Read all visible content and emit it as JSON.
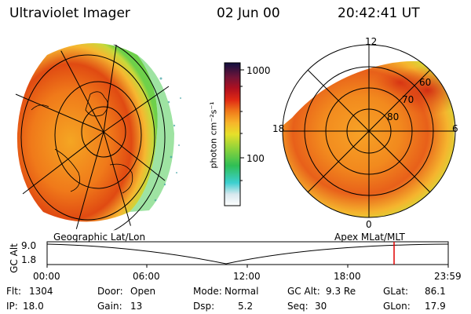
{
  "header": {
    "title": "Ultraviolet Imager",
    "date": "02 Jun 00",
    "time": "20:42:41 UT"
  },
  "colorbar": {
    "unit_label": "photon cm⁻²s⁻¹",
    "tick_1000": "1000",
    "tick_100": "100"
  },
  "left_panel": {
    "caption": "Geographic Lat/Lon"
  },
  "right_panel": {
    "caption": "Apex MLat/MLT",
    "mlt_12": "12",
    "mlt_18": "18",
    "mlt_6": "6",
    "mlt_0": "0",
    "mlat_60": "60",
    "mlat_70": "70",
    "mlat_80": "80"
  },
  "altitude_plot": {
    "ylabel": "GC Alt",
    "y_top": "9.0",
    "y_bottom": "1.8",
    "x_ticks": [
      "00:00",
      "06:00",
      "12:00",
      "18:00",
      "23:59"
    ],
    "current_time_marker": "20:42",
    "marker_color": "#e00000"
  },
  "status": {
    "flt_label": "Flt:",
    "flt_value": "1304",
    "ip_label": "IP:",
    "ip_value": "18.0",
    "door_label": "Door:",
    "door_value": "Open",
    "gain_label": "Gain:",
    "gain_value": "13",
    "mode_label": "Mode:",
    "mode_value": "Normal",
    "dsp_label": "Dsp:",
    "dsp_value": "5.2",
    "gcalt_label": "GC Alt:",
    "gcalt_value": "9.3 Re",
    "seq_label": "Seq:",
    "seq_value": "30",
    "glat_label": "GLat:",
    "glat_value": "86.1",
    "glon_label": "GLon:",
    "glon_value": "17.9"
  }
}
